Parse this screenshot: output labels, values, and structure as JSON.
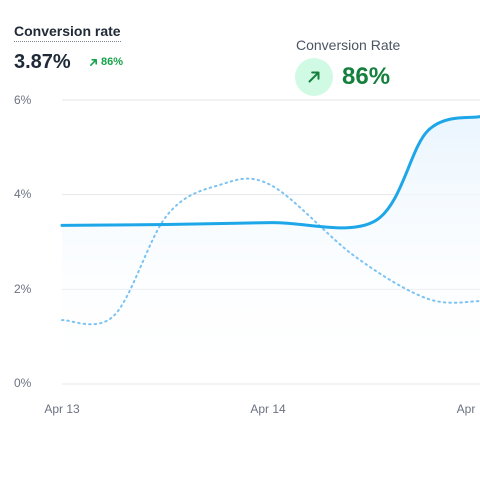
{
  "metric": {
    "title": "Conversion rate",
    "value": "3.87%",
    "change": "86%"
  },
  "tooltip": {
    "title": "Conversion Rate",
    "value": "86%"
  },
  "colors": {
    "primary_line": "#1ea7e8",
    "comparison_line": "#7cc3f3",
    "positive": "#16a34a",
    "positive_bg": "#d1fae5",
    "grid": "#e5e7eb",
    "area_top": "#eaf5fe"
  },
  "icons": {
    "metric_change": "arrow-up-right-icon",
    "tooltip_change": "arrow-up-right-icon"
  },
  "chart_data": {
    "type": "line",
    "categories": [
      "Apr 13",
      "Apr 14",
      "Apr"
    ],
    "ylim": [
      0,
      6
    ],
    "y_ticks": [
      "0%",
      "2%",
      "4%",
      "6%"
    ],
    "grid": true,
    "series": [
      {
        "x": [
          0,
          0.5,
          1.0,
          1.5,
          1.75,
          2.0
        ],
        "values": [
          3.35,
          3.37,
          3.41,
          3.45,
          5.35,
          5.65
        ]
      },
      {
        "x": [
          0,
          0.25,
          0.5,
          0.75,
          1.0,
          1.4,
          1.75,
          2.0
        ],
        "values": [
          1.35,
          1.45,
          3.55,
          4.2,
          4.2,
          2.7,
          1.8,
          1.75
        ]
      }
    ]
  }
}
